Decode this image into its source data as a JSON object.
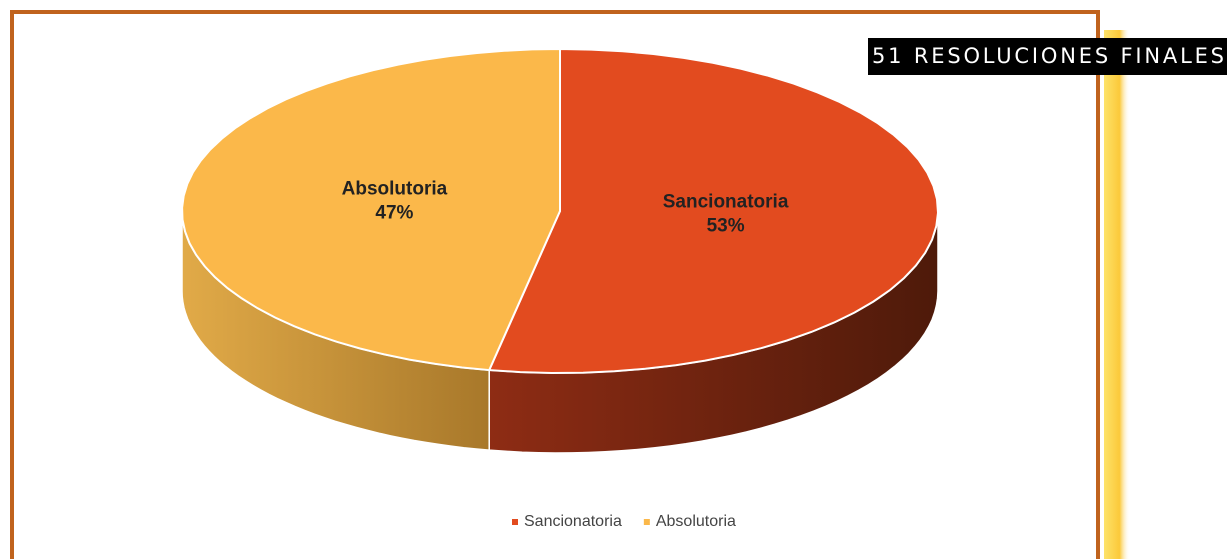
{
  "chart_data": {
    "type": "pie",
    "annotation": "51 RESOLUCIONES FINALES",
    "categories": [
      "Sancionatoria",
      "Absolutoria"
    ],
    "values": [
      53,
      47
    ],
    "value_labels": [
      "53%",
      "47%"
    ],
    "colors": [
      "#e24b1f",
      "#fbb84a"
    ],
    "legend": "bottom"
  }
}
